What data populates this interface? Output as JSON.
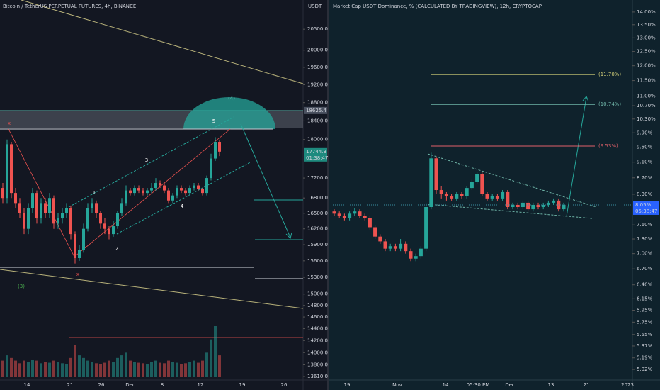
{
  "chart_data": [
    {
      "type": "candlestick",
      "title": "Bitcoin / TetherUS PERPETUAL FUTURES, 4h, BINANCE",
      "currency": "USDT",
      "log_scale": true,
      "ylim": [
        13565,
        21218
      ],
      "yticks": [
        {
          "value": 20500,
          "label": "20500.0"
        },
        {
          "value": 20000,
          "label": "20000.0"
        },
        {
          "value": 19600,
          "label": "19600.0"
        },
        {
          "value": 19200,
          "label": "19200.0"
        },
        {
          "value": 18800,
          "label": "18800.0"
        },
        {
          "value": 18400,
          "label": "18400.0"
        },
        {
          "value": 18000,
          "label": "18000.0"
        },
        {
          "value": 17200,
          "label": "17200.0"
        },
        {
          "value": 16800,
          "label": "16800.0"
        },
        {
          "value": 16500,
          "label": "16500.0"
        },
        {
          "value": 16200,
          "label": "16200.0"
        },
        {
          "value": 15900,
          "label": "15900.0"
        },
        {
          "value": 15600,
          "label": "15600.0"
        },
        {
          "value": 15300,
          "label": "15300.0"
        },
        {
          "value": 15000,
          "label": "15000.0"
        },
        {
          "value": 14800,
          "label": "14800.0"
        },
        {
          "value": 14600,
          "label": "14600.0"
        },
        {
          "value": 14400,
          "label": "14400.0"
        },
        {
          "value": 14200,
          "label": "14200.0"
        },
        {
          "value": 14000,
          "label": "14000.0"
        },
        {
          "value": 13800,
          "label": "13800.0"
        },
        {
          "value": 13610,
          "label": "13610.0"
        }
      ],
      "x_labels": [
        "14",
        "21",
        "26",
        "Dec",
        "8",
        "12",
        "19",
        "26"
      ],
      "open": [
        17000,
        16800,
        17900,
        16900,
        16700,
        16500,
        16200,
        16600,
        16900,
        16400,
        16700,
        16500,
        16800,
        16300,
        16400,
        16500,
        16600,
        16100,
        15650,
        15800,
        16200,
        16600,
        16700,
        16500,
        16300,
        16200,
        16100,
        16250,
        16500,
        16700,
        16950,
        16900,
        17000,
        16950,
        16900,
        16950,
        17000,
        17100,
        17050,
        16950,
        16750,
        16850,
        17000,
        16950,
        16900,
        17000,
        17050,
        16980,
        16900,
        17200,
        17600,
        17950
      ],
      "high": [
        17100,
        18000,
        17950,
        17000,
        16800,
        16600,
        16700,
        17000,
        16950,
        16800,
        16800,
        16900,
        16850,
        16500,
        16600,
        16700,
        16650,
        16150,
        15900,
        16300,
        16700,
        16800,
        16750,
        16550,
        16400,
        16250,
        16350,
        16550,
        16800,
        17050,
        17000,
        17050,
        17050,
        17000,
        17000,
        17100,
        17200,
        17150,
        17100,
        17000,
        16900,
        17050,
        17050,
        17000,
        17050,
        17100,
        17100,
        17000,
        17250,
        17700,
        18050,
        17980
      ],
      "low": [
        16700,
        16700,
        16800,
        16600,
        16400,
        16100,
        16100,
        16500,
        16300,
        16300,
        16400,
        16400,
        16200,
        16200,
        16300,
        16400,
        16000,
        15550,
        15600,
        15750,
        16150,
        16500,
        16400,
        16200,
        16100,
        16000,
        16050,
        16200,
        16450,
        16650,
        16850,
        16850,
        16900,
        16850,
        16850,
        16900,
        16950,
        17000,
        16900,
        16700,
        16700,
        16800,
        16900,
        16850,
        16850,
        16950,
        16950,
        16850,
        16850,
        17150,
        17550,
        17650
      ],
      "close": [
        16800,
        17900,
        16900,
        16700,
        16500,
        16200,
        16600,
        16900,
        16400,
        16700,
        16500,
        16800,
        16300,
        16400,
        16500,
        16600,
        16100,
        15650,
        15800,
        16200,
        16600,
        16700,
        16500,
        16300,
        16200,
        16100,
        16250,
        16500,
        16700,
        16950,
        16900,
        17000,
        16950,
        16900,
        16950,
        17000,
        17100,
        17050,
        16950,
        16750,
        16850,
        17000,
        16950,
        16900,
        17000,
        17050,
        16980,
        16900,
        17200,
        17600,
        17950,
        17744
      ],
      "volume": [
        30,
        40,
        35,
        30,
        25,
        30,
        28,
        32,
        30,
        25,
        28,
        26,
        30,
        28,
        25,
        24,
        35,
        60,
        40,
        35,
        30,
        28,
        25,
        24,
        26,
        30,
        28,
        35,
        40,
        45,
        30,
        28,
        26,
        25,
        24,
        28,
        30,
        26,
        25,
        30,
        28,
        26,
        24,
        25,
        28,
        30,
        26,
        30,
        45,
        70,
        95,
        40
      ],
      "up_color": "#26a69a",
      "down_color": "#ef5350",
      "price_labels": [
        {
          "value": 18625.4,
          "color": "#4a5160"
        },
        {
          "value": 17744.3,
          "color": "#1e8a7e"
        }
      ],
      "countdown": "01:38:47",
      "annotations": [
        "(4)",
        "5",
        "3",
        "1",
        "4",
        "2",
        "(3)",
        "x",
        "x"
      ]
    },
    {
      "type": "candlestick",
      "title": "Market Cap USDT Dominance, % (CALCULATED BY TRADINGVIEW), 12h, CRYPTOCAP",
      "log_scale": true,
      "ylim": [
        4.88,
        14.49
      ],
      "yticks": [
        {
          "value": 14.0,
          "label": "14.00%"
        },
        {
          "value": 13.5,
          "label": "13.50%"
        },
        {
          "value": 13.0,
          "label": "13.00%"
        },
        {
          "value": 12.5,
          "label": "12.50%"
        },
        {
          "value": 12.0,
          "label": "12.00%"
        },
        {
          "value": 11.5,
          "label": "11.50%"
        },
        {
          "value": 11.0,
          "label": "11.00%"
        },
        {
          "value": 10.7,
          "label": "10.70%"
        },
        {
          "value": 10.3,
          "label": "10.30%"
        },
        {
          "value": 9.9,
          "label": "9.90%"
        },
        {
          "value": 9.5,
          "label": "9.50%"
        },
        {
          "value": 9.1,
          "label": "9.10%"
        },
        {
          "value": 8.7,
          "label": "8.70%"
        },
        {
          "value": 8.3,
          "label": "8.30%"
        },
        {
          "value": 7.6,
          "label": "7.60%"
        },
        {
          "value": 7.3,
          "label": "7.30%"
        },
        {
          "value": 7.0,
          "label": "7.00%"
        },
        {
          "value": 6.7,
          "label": "6.70%"
        },
        {
          "value": 6.4,
          "label": "6.40%"
        },
        {
          "value": 6.15,
          "label": "6.15%"
        },
        {
          "value": 5.95,
          "label": "5.95%"
        },
        {
          "value": 5.75,
          "label": "5.75%"
        },
        {
          "value": 5.55,
          "label": "5.55%"
        },
        {
          "value": 5.37,
          "label": "5.37%"
        },
        {
          "value": 5.19,
          "label": "5.19%"
        },
        {
          "value": 5.02,
          "label": "5.02%"
        }
      ],
      "x_labels": [
        "19",
        "Nov",
        "14",
        "05:30 PM",
        "Dec",
        "13",
        "21",
        "2023"
      ],
      "open": [
        7.9,
        7.85,
        7.8,
        7.75,
        7.85,
        7.9,
        7.8,
        7.75,
        7.55,
        7.35,
        7.25,
        7.1,
        7.15,
        7.1,
        7.2,
        7.05,
        6.9,
        6.95,
        7.1,
        8.0,
        9.2,
        8.4,
        8.3,
        8.25,
        8.2,
        8.3,
        8.25,
        8.45,
        8.6,
        8.8,
        8.3,
        8.2,
        8.25,
        8.2,
        8.35,
        8.0,
        8.05,
        8.0,
        8.1,
        7.95,
        8.05,
        8.0,
        8.05,
        8.1,
        8.15,
        7.95
      ],
      "high": [
        7.95,
        7.9,
        7.85,
        7.9,
        7.98,
        7.95,
        7.85,
        7.8,
        7.6,
        7.4,
        7.3,
        7.2,
        7.2,
        7.3,
        7.25,
        7.1,
        7.0,
        7.15,
        8.1,
        9.35,
        9.25,
        8.5,
        8.35,
        8.3,
        8.35,
        8.35,
        8.5,
        8.65,
        8.85,
        8.85,
        8.35,
        8.3,
        8.3,
        8.4,
        8.4,
        8.1,
        8.1,
        8.15,
        8.15,
        8.1,
        8.1,
        8.1,
        8.15,
        8.2,
        8.2,
        8.1
      ],
      "low": [
        7.8,
        7.75,
        7.7,
        7.7,
        7.8,
        7.75,
        7.7,
        7.5,
        7.3,
        7.2,
        7.05,
        7.05,
        7.05,
        7.05,
        7.0,
        6.85,
        6.85,
        6.9,
        7.05,
        7.95,
        8.3,
        8.2,
        8.15,
        8.15,
        8.15,
        8.2,
        8.2,
        8.4,
        8.55,
        8.25,
        8.15,
        8.15,
        8.15,
        8.15,
        7.95,
        7.95,
        7.95,
        7.95,
        7.9,
        7.9,
        7.95,
        7.95,
        8.0,
        8.05,
        7.9,
        7.9
      ],
      "close": [
        7.85,
        7.8,
        7.75,
        7.85,
        7.9,
        7.8,
        7.75,
        7.55,
        7.35,
        7.25,
        7.1,
        7.15,
        7.1,
        7.2,
        7.05,
        6.9,
        6.95,
        7.1,
        8.0,
        9.2,
        8.4,
        8.3,
        8.25,
        8.2,
        8.3,
        8.25,
        8.45,
        8.6,
        8.8,
        8.3,
        8.2,
        8.25,
        8.2,
        8.35,
        8.0,
        8.05,
        8.0,
        8.1,
        7.95,
        8.05,
        8.0,
        8.05,
        8.1,
        8.15,
        7.95,
        8.05
      ],
      "up_color": "#26a69a",
      "down_color": "#ef5350",
      "last_price": {
        "value": 8.05,
        "label": "8.05%"
      },
      "countdown": "05:38:47",
      "levels": [
        {
          "value": 11.7,
          "label": "(11.70%)",
          "color": "#d4d17a"
        },
        {
          "value": 10.74,
          "label": "(10.74%)",
          "color": "#6fb5a8"
        },
        {
          "value": 9.53,
          "label": "(9.53%)",
          "color": "#e0606a"
        }
      ]
    }
  ]
}
